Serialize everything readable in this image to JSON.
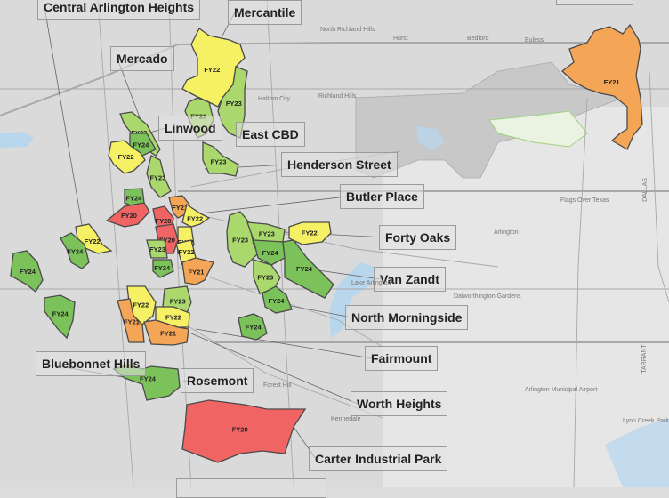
{
  "fy_colors": {
    "FY20": "#f06464",
    "FY21": "#f5a556",
    "FY22": "#f5f064",
    "FY23": "#aad86c",
    "FY24": "#7cc25a"
  },
  "districts": [
    {
      "fy": "FY22"
    },
    {
      "fy": "FY23"
    },
    {
      "fy": "FY23"
    },
    {
      "fy": "FY23"
    },
    {
      "fy": "FY23"
    },
    {
      "fy": "FY24"
    },
    {
      "fy": "FY22"
    },
    {
      "fy": "FY23"
    },
    {
      "fy": "FY24"
    },
    {
      "fy": "FY20"
    },
    {
      "fy": "FY20"
    },
    {
      "fy": "FY21"
    },
    {
      "fy": "FY22"
    },
    {
      "fy": "FY20"
    },
    {
      "fy": "FY22"
    },
    {
      "fy": "FY23"
    },
    {
      "fy": "FY24"
    },
    {
      "fy": "FY22"
    },
    {
      "fy": "FY21"
    },
    {
      "fy": "FY22"
    },
    {
      "fy": "FY24"
    },
    {
      "fy": "FY24"
    },
    {
      "fy": "FY24"
    },
    {
      "fy": "FY22"
    },
    {
      "fy": "FY21"
    },
    {
      "fy": "FY23"
    },
    {
      "fy": "FY22"
    },
    {
      "fy": "FY21"
    },
    {
      "fy": "FY24"
    },
    {
      "fy": "FY24"
    },
    {
      "fy": "FY20"
    },
    {
      "fy": "FY23"
    },
    {
      "fy": "FY23"
    },
    {
      "fy": "FY24"
    },
    {
      "fy": "FY24"
    },
    {
      "fy": "FY23"
    },
    {
      "fy": "FY24"
    },
    {
      "fy": "FY22"
    },
    {
      "fy": "FY21"
    }
  ],
  "callouts": [
    "Central Arlington Heights",
    "Mercantile",
    "Mercado",
    "Linwood",
    "East CBD",
    "Henderson Street",
    "Butler Place",
    "Forty Oaks",
    "Van Zandt",
    "North Morningside",
    "Fairmount",
    "Bluebonnet Hills",
    "Rosemont",
    "Worth Heights",
    "Carter Industrial Park"
  ],
  "places": [
    "North Richland Hills",
    "Hurst",
    "Bedford",
    "Euless",
    "Haltom City",
    "Richland Hills",
    "Arlington",
    "Dalworthington Gardens",
    "Arlington Municipal Airport",
    "Flags Over Texas",
    "Forest Hill",
    "Kennedale",
    "DALLAS",
    "TARRANT",
    "Lynn Creek Park",
    "Lake Arlington"
  ]
}
